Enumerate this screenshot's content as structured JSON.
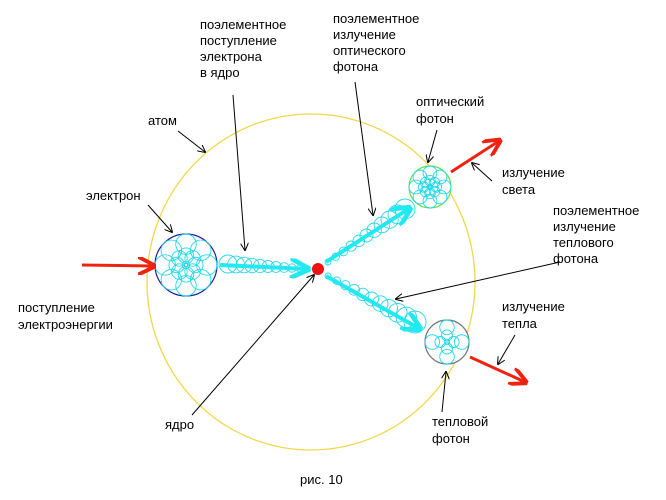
{
  "labels": {
    "input_element": [
      "поэлементное",
      "поступление",
      "электрона",
      "в ядро"
    ],
    "emit_optical": [
      "поэлементное",
      "излучение",
      "оптического",
      "фотона"
    ],
    "optical_photon": [
      "оптический",
      "фотон"
    ],
    "atom": "атом",
    "electron": "электрон",
    "light_emission": [
      "излучение",
      "света"
    ],
    "emit_thermal": [
      "поэлементное",
      "излучение",
      "теплового",
      "фотона"
    ],
    "heat_emission": [
      "излучение",
      "тепла"
    ],
    "power_input": [
      "поступление",
      "электроэнергии"
    ],
    "nucleus": "ядро",
    "thermal_photon": [
      "тепловой",
      "фотон"
    ],
    "caption": "рис. 10"
  },
  "colors": {
    "atom": "#f0d84a",
    "energy": "#ee2211",
    "flow": "#22e8f0",
    "electron_border": "#202090",
    "optical_border": "#66dd44",
    "thermal_border": "#777777",
    "nucleus": "#ee1111"
  }
}
